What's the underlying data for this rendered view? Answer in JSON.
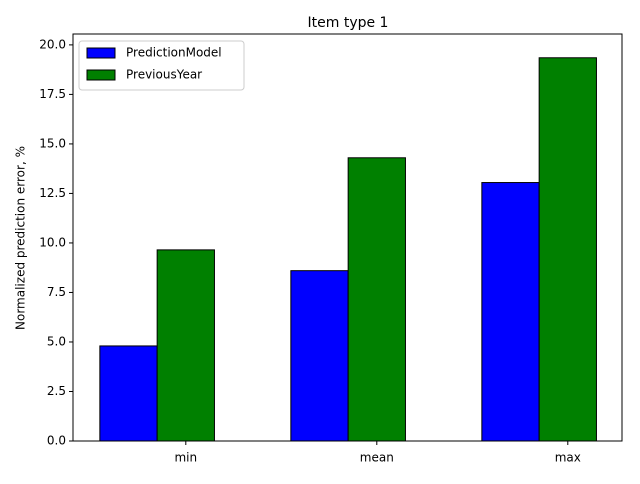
{
  "chart_data": {
    "type": "bar",
    "title": "Item type 1",
    "ylabel": "Normalized prediction error, %",
    "categories": [
      "min",
      "mean",
      "max"
    ],
    "series": [
      {
        "name": "PredictionModel",
        "color": "#0000ff",
        "values": [
          4.8,
          8.6,
          13.05
        ]
      },
      {
        "name": "PreviousYear",
        "color": "#008000",
        "values": [
          9.65,
          14.3,
          19.35
        ]
      }
    ],
    "ylim": [
      0,
      20.55
    ],
    "yticks": [
      {
        "value": 0,
        "label": "0.0"
      },
      {
        "value": 2.5,
        "label": "2.5"
      },
      {
        "value": 5,
        "label": "5.0"
      },
      {
        "value": 7.5,
        "label": "7.5"
      },
      {
        "value": 10,
        "label": "10.0"
      },
      {
        "value": 12.5,
        "label": "12.5"
      },
      {
        "value": 15,
        "label": "15.0"
      },
      {
        "value": 17.5,
        "label": "17.5"
      },
      {
        "value": 20,
        "label": "20.0"
      }
    ],
    "legend": "upper left"
  }
}
